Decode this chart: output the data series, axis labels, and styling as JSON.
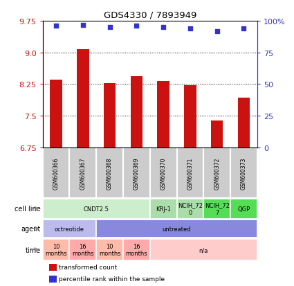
{
  "title": "GDS4330 / 7893949",
  "samples": [
    "GSM600366",
    "GSM600367",
    "GSM600368",
    "GSM600369",
    "GSM600370",
    "GSM600371",
    "GSM600372",
    "GSM600373"
  ],
  "bar_values": [
    8.35,
    9.08,
    8.28,
    8.43,
    8.32,
    8.22,
    7.38,
    7.93
  ],
  "percentile_values": [
    96,
    97,
    95,
    96,
    95,
    94,
    92,
    94
  ],
  "bar_color": "#cc1111",
  "dot_color": "#3333cc",
  "ylim_left": [
    6.75,
    9.75
  ],
  "yticks_left": [
    6.75,
    7.5,
    8.25,
    9.0,
    9.75
  ],
  "ylim_right": [
    0,
    100
  ],
  "yticks_right": [
    0,
    25,
    50,
    75,
    100
  ],
  "yticklabels_right": [
    "0",
    "25",
    "50",
    "75",
    "100%"
  ],
  "cell_line_groups": [
    {
      "label": "CNDT2.5",
      "start": 0,
      "end": 4,
      "color": "#cceecc"
    },
    {
      "label": "KRJ-1",
      "start": 4,
      "end": 5,
      "color": "#aaddaa"
    },
    {
      "label": "NCIH_72\n0",
      "start": 5,
      "end": 6,
      "color": "#aaddaa"
    },
    {
      "label": "NCIH_72\n7",
      "start": 6,
      "end": 7,
      "color": "#55dd55"
    },
    {
      "label": "QGP",
      "start": 7,
      "end": 8,
      "color": "#55dd55"
    }
  ],
  "agent_groups": [
    {
      "label": "octreotide",
      "start": 0,
      "end": 2,
      "color": "#bbbbee"
    },
    {
      "label": "untreated",
      "start": 2,
      "end": 8,
      "color": "#8888dd"
    }
  ],
  "time_groups": [
    {
      "label": "10\nmonths",
      "start": 0,
      "end": 1,
      "color": "#ffbbaa"
    },
    {
      "label": "16\nmonths",
      "start": 1,
      "end": 2,
      "color": "#ffaaaa"
    },
    {
      "label": "10\nmonths",
      "start": 2,
      "end": 3,
      "color": "#ffbbaa"
    },
    {
      "label": "16\nmonths",
      "start": 3,
      "end": 4,
      "color": "#ffaaaa"
    },
    {
      "label": "n/a",
      "start": 4,
      "end": 8,
      "color": "#ffcccc"
    }
  ],
  "sample_box_color": "#cccccc",
  "legend_items": [
    {
      "color": "#cc1111",
      "label": "transformed count"
    },
    {
      "color": "#3333cc",
      "label": "percentile rank within the sample"
    }
  ],
  "figsize": [
    4.25,
    4.14
  ],
  "dpi": 100
}
